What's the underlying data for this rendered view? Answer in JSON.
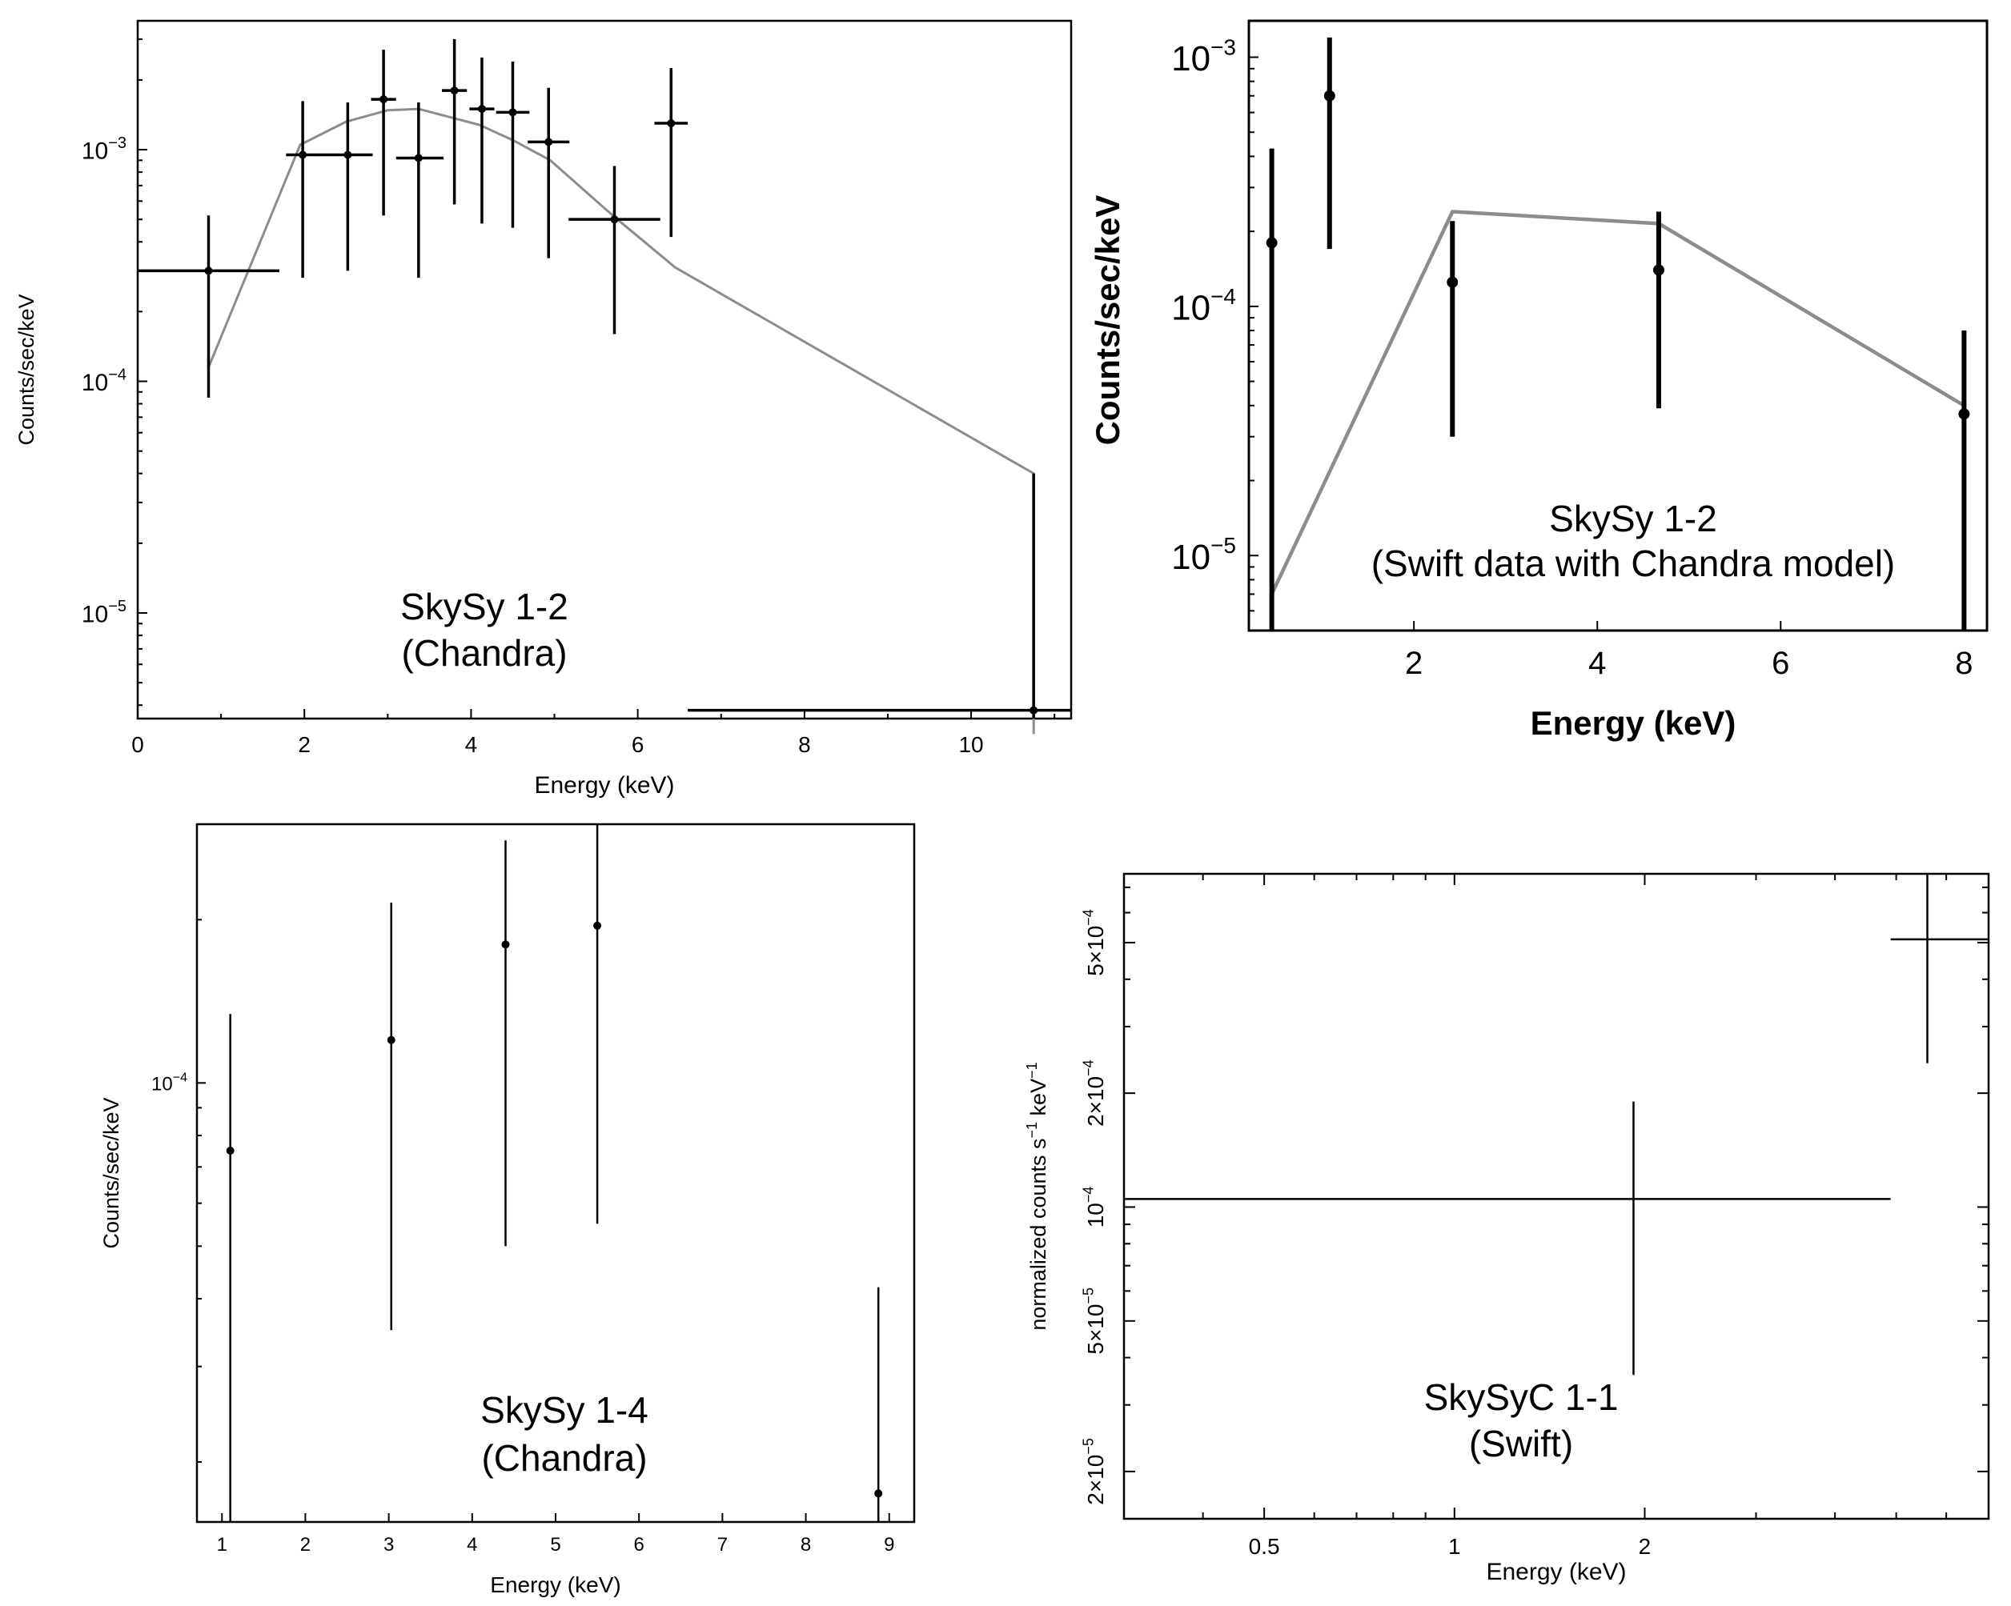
{
  "figure": {
    "description_order": [
      "top-left",
      "top-right",
      "bottom-left",
      "bottom-right"
    ]
  },
  "chart_data": [
    {
      "id": "p1",
      "type": "scatter",
      "title": "SkySy 1-2 (Chandra)",
      "annotation_lines": [
        "SkySy 1-2",
        "(Chandra)"
      ],
      "xlabel": "Energy (keV)",
      "ylabel": "Counts/sec/keV",
      "xscale": "linear",
      "yscale": "log",
      "xlim": [
        0,
        11.2
      ],
      "ylim": [
        3.5e-06,
        0.0036
      ],
      "xticks": [
        0,
        2,
        4,
        6,
        8,
        10
      ],
      "xtick_labels": [
        "0",
        "2",
        "4",
        "6",
        "8",
        "10"
      ],
      "yticks": [
        1e-05,
        0.0001,
        0.001
      ],
      "ytick_labels": [
        [
          "10",
          "−5"
        ],
        [
          "10",
          "−4"
        ],
        [
          "10",
          "−3"
        ]
      ],
      "data": [
        {
          "x": 0.85,
          "xerr": [
            0.85,
            0.85
          ],
          "y": 0.0003,
          "ylo": 8.5e-05,
          "yhi": 0.00052
        },
        {
          "x": 1.98,
          "xerr": [
            0.2,
            0.2
          ],
          "y": 0.00095,
          "ylo": 0.00028,
          "yhi": 0.00162
        },
        {
          "x": 2.52,
          "xerr": [
            0.35,
            0.3
          ],
          "y": 0.00095,
          "ylo": 0.0003,
          "yhi": 0.0016
        },
        {
          "x": 2.95,
          "xerr": [
            0.15,
            0.15
          ],
          "y": 0.00165,
          "ylo": 0.00052,
          "yhi": 0.0027
        },
        {
          "x": 3.37,
          "xerr": [
            0.27,
            0.3
          ],
          "y": 0.00092,
          "ylo": 0.00028,
          "yhi": 0.0016
        },
        {
          "x": 3.8,
          "xerr": [
            0.15,
            0.15
          ],
          "y": 0.0018,
          "ylo": 0.00058,
          "yhi": 0.003
        },
        {
          "x": 4.13,
          "xerr": [
            0.15,
            0.15
          ],
          "y": 0.0015,
          "ylo": 0.00048,
          "yhi": 0.0025
        },
        {
          "x": 4.5,
          "xerr": [
            0.2,
            0.2
          ],
          "y": 0.00145,
          "ylo": 0.00046,
          "yhi": 0.0024
        },
        {
          "x": 4.93,
          "xerr": [
            0.25,
            0.25
          ],
          "y": 0.00108,
          "ylo": 0.00034,
          "yhi": 0.00185
        },
        {
          "x": 5.72,
          "xerr": [
            0.55,
            0.55
          ],
          "y": 0.0005,
          "ylo": 0.00016,
          "yhi": 0.00085
        },
        {
          "x": 6.4,
          "xerr": [
            0.2,
            0.2
          ],
          "y": 0.0013,
          "ylo": 0.00042,
          "yhi": 0.00225
        },
        {
          "x": 10.75,
          "xerr": [
            4.15,
            0.45
          ],
          "y": 3.8e-06,
          "ylo": 3e-06,
          "yhi": 4e-05
        }
      ],
      "model": {
        "name": "model",
        "x": [
          0.85,
          1.95,
          2.5,
          3.0,
          3.37,
          4.1,
          4.5,
          4.95,
          5.7,
          6.45,
          10.75,
          10.75
        ],
        "y": [
          0.000115,
          0.00105,
          0.00132,
          0.00148,
          0.0015,
          0.00128,
          0.0011,
          0.0009,
          0.00052,
          0.00031,
          4e-05,
          3e-06
        ]
      }
    },
    {
      "id": "p2",
      "type": "scatter",
      "title": "SkySy 1-2 (Swift data with Chandra model)",
      "annotation_lines": [
        "SkySy 1-2",
        "(Swift data with Chandra model)"
      ],
      "xlabel": "Energy (keV)",
      "ylabel": "Counts/sec/keV",
      "xscale": "linear",
      "yscale": "log",
      "xlim": [
        0.2,
        8.25
      ],
      "ylim": [
        5e-06,
        0.0014
      ],
      "xticks": [
        2,
        4,
        6,
        8
      ],
      "xtick_labels": [
        "2",
        "4",
        "6",
        "8"
      ],
      "yticks": [
        1e-05,
        0.0001,
        0.001
      ],
      "ytick_labels": [
        [
          "10",
          "−5"
        ],
        [
          "10",
          "−4"
        ],
        [
          "10",
          "−3"
        ]
      ],
      "data": [
        {
          "x": 0.45,
          "y": 0.00018,
          "ylo": 4e-06,
          "yhi": 0.00043
        },
        {
          "x": 1.08,
          "y": 0.0007,
          "ylo": 0.00017,
          "yhi": 0.0012
        },
        {
          "x": 2.42,
          "y": 0.000125,
          "ylo": 3e-05,
          "yhi": 0.00022
        },
        {
          "x": 4.67,
          "y": 0.00014,
          "ylo": 3.9e-05,
          "yhi": 0.00024
        },
        {
          "x": 8.0,
          "y": 3.7e-05,
          "ylo": 4e-06,
          "yhi": 8e-05
        }
      ],
      "model": {
        "name": "Chandra model",
        "x": [
          0.45,
          2.42,
          4.67,
          8.0
        ],
        "y": [
          7e-06,
          0.00024,
          0.000215,
          4e-05
        ]
      }
    },
    {
      "id": "p3",
      "type": "scatter",
      "title": "SkySy 1-4 (Chandra)",
      "annotation_lines": [
        "SkySy 1-4",
        "(Chandra)"
      ],
      "xlabel": "Energy (keV)",
      "ylabel": "Counts/sec/keV",
      "xscale": "linear",
      "yscale": "log",
      "xlim": [
        0.7,
        9.3
      ],
      "ylim": [
        1.55e-05,
        0.0003
      ],
      "xticks": [
        1,
        2,
        3,
        4,
        5,
        6,
        7,
        8,
        9
      ],
      "xtick_labels": [
        "1",
        "2",
        "3",
        "4",
        "5",
        "6",
        "7",
        "8",
        "9"
      ],
      "yticks": [
        0.0001
      ],
      "ytick_labels": [
        [
          "10",
          "−4"
        ]
      ],
      "data": [
        {
          "x": 1.1,
          "y": 7.5e-05,
          "ylo": 1.5e-05,
          "yhi": 0.000134
        },
        {
          "x": 3.03,
          "y": 0.00012,
          "ylo": 3.5e-05,
          "yhi": 0.000215
        },
        {
          "x": 4.4,
          "y": 0.00018,
          "ylo": 5e-05,
          "yhi": 0.00028
        },
        {
          "x": 5.5,
          "y": 0.000195,
          "ylo": 5.5e-05,
          "yhi": 0.000305
        },
        {
          "x": 8.87,
          "y": 1.75e-05,
          "ylo": 1.5e-05,
          "yhi": 4.2e-05
        }
      ]
    },
    {
      "id": "p4",
      "type": "scatter",
      "title": "SkySyC 1-1 (Swift)",
      "annotation_lines": [
        "SkySyC 1-1",
        "(Swift)"
      ],
      "xlabel": "Energy (keV)",
      "ylabel_parts": [
        "normalized counts s",
        "−1",
        " keV",
        "−1"
      ],
      "xscale": "log",
      "yscale": "log",
      "xlim": [
        0.3,
        7.0
      ],
      "ylim": [
        1.5e-05,
        0.00076
      ],
      "xticks": [
        0.5,
        1,
        2
      ],
      "xtick_labels": [
        "0.5",
        "1",
        "2"
      ],
      "yticks": [
        2e-05,
        5e-05,
        0.0001,
        0.0002,
        0.0005
      ],
      "ytick_labels": [
        [
          "2×10",
          "−5"
        ],
        [
          "5×10",
          "−5"
        ],
        [
          "10",
          "−4"
        ],
        [
          "2×10",
          "−4"
        ],
        [
          "5×10",
          "−4"
        ]
      ],
      "data": [
        {
          "x": 1.92,
          "xlo": 0.3,
          "xhi": 4.9,
          "y": 0.000105,
          "ylo": 3.6e-05,
          "yhi": 0.00019
        },
        {
          "x": 5.6,
          "xlo": 4.9,
          "xhi": 7.0,
          "y": 0.00051,
          "ylo": 0.00024,
          "yhi": 0.00076
        }
      ]
    }
  ]
}
